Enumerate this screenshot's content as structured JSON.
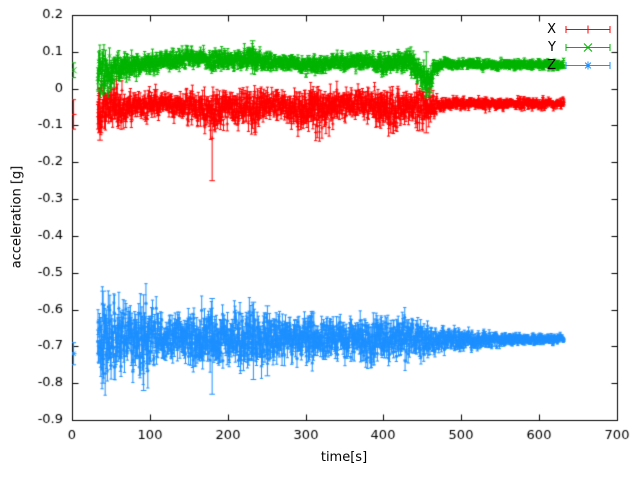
{
  "chart_data": {
    "type": "line",
    "style": "errorbars",
    "title": "",
    "xlabel": "time[s]",
    "ylabel": "acceleration [g]",
    "xlim": [
      0,
      700
    ],
    "ylim": [
      -0.9,
      0.2
    ],
    "grid": false,
    "axis_color": "#000000",
    "background": "#ffffff",
    "xticks": {
      "values": [
        0,
        100,
        200,
        300,
        400,
        500,
        600,
        700
      ],
      "labels": [
        "0",
        "100",
        "200",
        "300",
        "400",
        "500",
        "600",
        "700"
      ]
    },
    "yticks": {
      "values": [
        0.2,
        0.1,
        0,
        -0.1,
        -0.2,
        -0.3,
        -0.4,
        -0.5,
        -0.6,
        -0.7,
        -0.8,
        -0.9
      ],
      "labels": [
        "0.2",
        "0.1",
        "0",
        "-0.1",
        "-0.2",
        "-0.3",
        "-0.4",
        "-0.5",
        "-0.6",
        "-0.7",
        "-0.8",
        "-0.9"
      ]
    },
    "legend": {
      "position": "top-right",
      "entries": [
        "X",
        "Y",
        "Z"
      ]
    },
    "series": [
      {
        "name": "X",
        "color": "#ff0000",
        "marker": "plus",
        "t_range": [
          33,
          632
        ],
        "start_point": {
          "t": 2,
          "y": -0.07,
          "err": 0.04
        },
        "envelope": [
          [
            33,
            -0.055,
            0.065
          ],
          [
            45,
            -0.045,
            0.04
          ],
          [
            58,
            -0.05,
            0.05
          ],
          [
            70,
            -0.05,
            0.035
          ],
          [
            85,
            -0.045,
            0.03
          ],
          [
            100,
            -0.045,
            0.03
          ],
          [
            115,
            -0.04,
            0.025
          ],
          [
            130,
            -0.04,
            0.025
          ],
          [
            145,
            -0.045,
            0.03
          ],
          [
            160,
            -0.05,
            0.035
          ],
          [
            175,
            -0.05,
            0.04
          ],
          [
            190,
            -0.055,
            0.045
          ],
          [
            205,
            -0.05,
            0.035
          ],
          [
            220,
            -0.05,
            0.04
          ],
          [
            235,
            -0.055,
            0.05
          ],
          [
            250,
            -0.045,
            0.03
          ],
          [
            265,
            -0.04,
            0.025
          ],
          [
            280,
            -0.05,
            0.035
          ],
          [
            295,
            -0.06,
            0.045
          ],
          [
            310,
            -0.05,
            0.05
          ],
          [
            325,
            -0.055,
            0.045
          ],
          [
            340,
            -0.045,
            0.035
          ],
          [
            355,
            -0.04,
            0.03
          ],
          [
            370,
            -0.035,
            0.03
          ],
          [
            385,
            -0.045,
            0.035
          ],
          [
            400,
            -0.055,
            0.05
          ],
          [
            412,
            -0.06,
            0.045
          ],
          [
            425,
            -0.05,
            0.035
          ],
          [
            438,
            -0.045,
            0.03
          ],
          [
            450,
            -0.05,
            0.04
          ],
          [
            462,
            -0.05,
            0.035
          ],
          [
            470,
            -0.042,
            0.016
          ],
          [
            500,
            -0.04,
            0.013
          ],
          [
            550,
            -0.042,
            0.012
          ],
          [
            600,
            -0.04,
            0.012
          ],
          [
            632,
            -0.04,
            0.012
          ]
        ],
        "spikes": [
          {
            "t": 180,
            "lo": -0.25,
            "hi": -0.02
          },
          {
            "t": 36,
            "lo": -0.14,
            "hi": 0.0
          },
          {
            "t": 455,
            "lo": -0.12,
            "hi": -0.01
          }
        ]
      },
      {
        "name": "Y",
        "color": "#00b400",
        "marker": "cross",
        "t_range": [
          33,
          632
        ],
        "start_point": {
          "t": 2,
          "y": 0.05,
          "err": 0.02
        },
        "envelope": [
          [
            33,
            0.055,
            0.05
          ],
          [
            45,
            0.05,
            0.045
          ],
          [
            55,
            0.055,
            0.035
          ],
          [
            70,
            0.06,
            0.03
          ],
          [
            85,
            0.065,
            0.025
          ],
          [
            100,
            0.068,
            0.022
          ],
          [
            115,
            0.075,
            0.02
          ],
          [
            130,
            0.08,
            0.02
          ],
          [
            145,
            0.085,
            0.022
          ],
          [
            160,
            0.08,
            0.02
          ],
          [
            175,
            0.078,
            0.02
          ],
          [
            190,
            0.08,
            0.022
          ],
          [
            205,
            0.075,
            0.02
          ],
          [
            220,
            0.08,
            0.025
          ],
          [
            232,
            0.085,
            0.03
          ],
          [
            245,
            0.075,
            0.02
          ],
          [
            260,
            0.072,
            0.018
          ],
          [
            280,
            0.07,
            0.018
          ],
          [
            300,
            0.065,
            0.02
          ],
          [
            315,
            0.062,
            0.022
          ],
          [
            330,
            0.07,
            0.018
          ],
          [
            350,
            0.073,
            0.018
          ],
          [
            370,
            0.075,
            0.018
          ],
          [
            390,
            0.07,
            0.02
          ],
          [
            405,
            0.068,
            0.022
          ],
          [
            420,
            0.072,
            0.025
          ],
          [
            432,
            0.075,
            0.028
          ],
          [
            442,
            0.06,
            0.03
          ],
          [
            450,
            0.03,
            0.035
          ],
          [
            457,
            0.005,
            0.03
          ],
          [
            463,
            0.04,
            0.03
          ],
          [
            468,
            0.06,
            0.015
          ],
          [
            475,
            0.065,
            0.012
          ],
          [
            520,
            0.066,
            0.011
          ],
          [
            570,
            0.065,
            0.01
          ],
          [
            632,
            0.065,
            0.01
          ]
        ],
        "spikes": [
          {
            "t": 232,
            "lo": 0.04,
            "hi": 0.13
          },
          {
            "t": 455,
            "lo": -0.02,
            "hi": 0.1
          }
        ]
      },
      {
        "name": "Z",
        "color": "#1e90ff",
        "marker": "asterisk",
        "t_range": [
          33,
          632
        ],
        "start_point": {
          "t": 2,
          "y": -0.72,
          "err": 0.03
        },
        "envelope": [
          [
            33,
            -0.67,
            0.08
          ],
          [
            42,
            -0.68,
            0.09
          ],
          [
            52,
            -0.675,
            0.08
          ],
          [
            62,
            -0.675,
            0.07
          ],
          [
            75,
            -0.68,
            0.06
          ],
          [
            88,
            -0.68,
            0.085
          ],
          [
            95,
            -0.68,
            0.08
          ],
          [
            105,
            -0.675,
            0.055
          ],
          [
            120,
            -0.675,
            0.045
          ],
          [
            135,
            -0.675,
            0.05
          ],
          [
            150,
            -0.675,
            0.05
          ],
          [
            162,
            -0.68,
            0.06
          ],
          [
            175,
            -0.68,
            0.065
          ],
          [
            188,
            -0.678,
            0.055
          ],
          [
            200,
            -0.675,
            0.05
          ],
          [
            215,
            -0.68,
            0.06
          ],
          [
            228,
            -0.68,
            0.065
          ],
          [
            242,
            -0.678,
            0.06
          ],
          [
            255,
            -0.675,
            0.055
          ],
          [
            270,
            -0.678,
            0.045
          ],
          [
            285,
            -0.675,
            0.04
          ],
          [
            300,
            -0.68,
            0.05
          ],
          [
            313,
            -0.685,
            0.055
          ],
          [
            328,
            -0.676,
            0.04
          ],
          [
            342,
            -0.68,
            0.045
          ],
          [
            358,
            -0.676,
            0.04
          ],
          [
            372,
            -0.678,
            0.04
          ],
          [
            386,
            -0.682,
            0.05
          ],
          [
            398,
            -0.684,
            0.05
          ],
          [
            410,
            -0.676,
            0.04
          ],
          [
            424,
            -0.68,
            0.05
          ],
          [
            436,
            -0.676,
            0.04
          ],
          [
            450,
            -0.68,
            0.035
          ],
          [
            465,
            -0.68,
            0.03
          ],
          [
            480,
            -0.68,
            0.026
          ],
          [
            500,
            -0.68,
            0.022
          ],
          [
            525,
            -0.681,
            0.018
          ],
          [
            550,
            -0.682,
            0.015
          ],
          [
            580,
            -0.68,
            0.012
          ],
          [
            610,
            -0.68,
            0.01
          ],
          [
            632,
            -0.68,
            0.01
          ]
        ],
        "spikes": [
          {
            "t": 40,
            "lo": -0.8,
            "hi": -0.55
          },
          {
            "t": 92,
            "lo": -0.82,
            "hi": -0.56
          },
          {
            "t": 180,
            "lo": -0.83,
            "hi": -0.57
          },
          {
            "t": 233,
            "lo": -0.79,
            "hi": -0.58
          },
          {
            "t": 251,
            "lo": -0.78,
            "hi": -0.59
          }
        ]
      }
    ]
  }
}
